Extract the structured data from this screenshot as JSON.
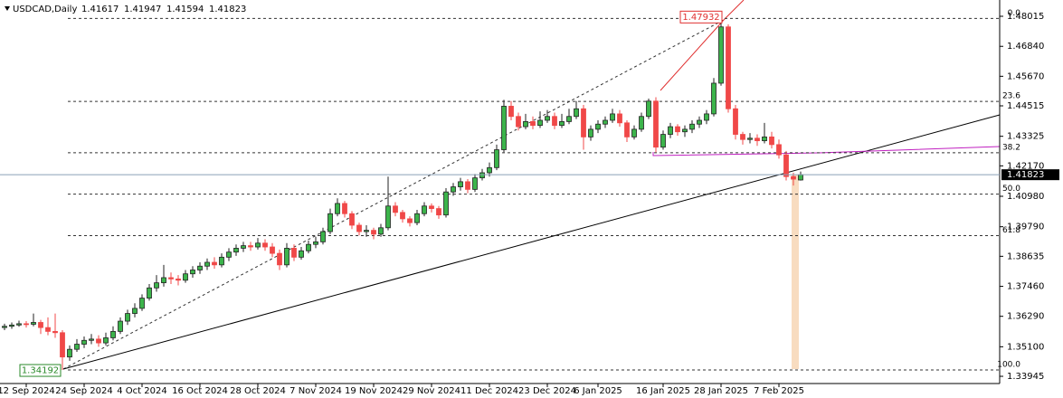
{
  "chart_data": {
    "type": "candlestick",
    "symbol": "USDCAD,Daily",
    "up_color": "#3cb44b",
    "down_color": "#f04848",
    "ylim": [
      1.33663,
      1.48651
    ],
    "yticks": [
      1.48015,
      {
        "value": 1.4684,
        "label": "1.46840"
      },
      {
        "value": 1.4567,
        "label": "1.45670"
      },
      1.44515,
      1.43325,
      {
        "value": 1.4217,
        "label": "1.42170"
      },
      {
        "value": 1.4098,
        "label": "1.40980"
      },
      {
        "value": 1.3979,
        "label": "1.39790"
      },
      1.38635,
      {
        "value": 1.3746,
        "label": "1.37460"
      },
      {
        "value": 1.3629,
        "label": "1.36290"
      },
      {
        "value": 1.351,
        "label": "1.35100"
      },
      1.33945
    ],
    "fibo_levels": [
      {
        "value": 1.47932,
        "label": "0.0"
      },
      {
        "value": 1.44689,
        "label": "23.6"
      },
      {
        "value": 1.42683,
        "label": "38.2"
      },
      {
        "value": 1.41062,
        "label": "50.0"
      },
      {
        "value": 1.39441,
        "label": "61.8"
      },
      {
        "value": 1.34192,
        "label": "100.0"
      }
    ],
    "categories": [
      null,
      null,
      null,
      "12 Sep 2024",
      null,
      null,
      null,
      null,
      null,
      null,
      null,
      "24 Sep 2024",
      null,
      null,
      null,
      null,
      null,
      null,
      null,
      "4 Oct 2024",
      null,
      null,
      null,
      null,
      null,
      null,
      null,
      "16 Oct 2024",
      null,
      null,
      null,
      null,
      null,
      null,
      null,
      "28 Oct 2024",
      null,
      null,
      null,
      null,
      null,
      null,
      null,
      "7 Nov 2024",
      null,
      null,
      null,
      null,
      null,
      null,
      null,
      "19 Nov 2024",
      null,
      null,
      null,
      null,
      null,
      null,
      null,
      "29 Nov 2024",
      null,
      null,
      null,
      null,
      null,
      null,
      null,
      "11 Dec 2024",
      null,
      null,
      null,
      null,
      null,
      null,
      null,
      "23 Dec 2024",
      null,
      null,
      null,
      null,
      null,
      null,
      "6 Jan 2025",
      null,
      null,
      null,
      null,
      null,
      null,
      null,
      null,
      "16 Jan 2025",
      null,
      null,
      null,
      null,
      null,
      null,
      null,
      "28 Jan 2025",
      null,
      null,
      null,
      null,
      null,
      null,
      null,
      "7 Feb 2025",
      null,
      null,
      null
    ],
    "ohlc": [
      [
        1.3585,
        1.36,
        1.3575,
        1.359
      ],
      [
        1.359,
        1.3605,
        1.358,
        1.3595
      ],
      [
        1.3595,
        1.3612,
        1.3588,
        1.36
      ],
      [
        1.36,
        1.361,
        1.3585,
        1.3598
      ],
      [
        1.3598,
        1.364,
        1.359,
        1.3605
      ],
      [
        1.3605,
        1.3615,
        1.356,
        1.3585
      ],
      [
        1.3585,
        1.3625,
        1.3555,
        1.357
      ],
      [
        1.357,
        1.364,
        1.3545,
        1.3565
      ],
      [
        1.3565,
        1.3575,
        1.34192,
        1.347
      ],
      [
        1.347,
        1.3515,
        1.3455,
        1.35
      ],
      [
        1.35,
        1.354,
        1.349,
        1.352
      ],
      [
        1.352,
        1.355,
        1.3505,
        1.3535
      ],
      [
        1.3535,
        1.356,
        1.352,
        1.354
      ],
      [
        1.354,
        1.3555,
        1.351,
        1.3525
      ],
      [
        1.3525,
        1.3565,
        1.3515,
        1.3545
      ],
      [
        1.3545,
        1.359,
        1.3535,
        1.357
      ],
      [
        1.357,
        1.3625,
        1.356,
        1.361
      ],
      [
        1.361,
        1.3655,
        1.3595,
        1.364
      ],
      [
        1.364,
        1.368,
        1.3625,
        1.366
      ],
      [
        1.366,
        1.3715,
        1.365,
        1.37
      ],
      [
        1.37,
        1.3755,
        1.369,
        1.374
      ],
      [
        1.374,
        1.379,
        1.3725,
        1.376
      ],
      [
        1.376,
        1.383,
        1.3745,
        1.378
      ],
      [
        1.378,
        1.38,
        1.3755,
        1.3775
      ],
      [
        1.3775,
        1.379,
        1.375,
        1.377
      ],
      [
        1.377,
        1.381,
        1.376,
        1.3795
      ],
      [
        1.3795,
        1.3825,
        1.378,
        1.381
      ],
      [
        1.381,
        1.384,
        1.3795,
        1.3825
      ],
      [
        1.3825,
        1.3855,
        1.381,
        1.384
      ],
      [
        1.384,
        1.386,
        1.3815,
        1.383
      ],
      [
        1.383,
        1.3875,
        1.382,
        1.386
      ],
      [
        1.386,
        1.3895,
        1.3845,
        1.388
      ],
      [
        1.388,
        1.391,
        1.3865,
        1.3895
      ],
      [
        1.3895,
        1.392,
        1.388,
        1.3905
      ],
      [
        1.3905,
        1.392,
        1.3885,
        1.39
      ],
      [
        1.39,
        1.3935,
        1.389,
        1.3915
      ],
      [
        1.3915,
        1.393,
        1.3885,
        1.39
      ],
      [
        1.39,
        1.3915,
        1.386,
        1.3875
      ],
      [
        1.3875,
        1.389,
        1.381,
        1.383
      ],
      [
        1.383,
        1.3915,
        1.382,
        1.3895
      ],
      [
        1.3895,
        1.391,
        1.3845,
        1.386
      ],
      [
        1.386,
        1.39,
        1.385,
        1.3885
      ],
      [
        1.3885,
        1.3925,
        1.3875,
        1.391
      ],
      [
        1.391,
        1.394,
        1.3895,
        1.392
      ],
      [
        1.392,
        1.3975,
        1.391,
        1.396
      ],
      [
        1.396,
        1.405,
        1.395,
        1.403
      ],
      [
        1.403,
        1.409,
        1.402,
        1.407
      ],
      [
        1.407,
        1.408,
        1.4015,
        1.403
      ],
      [
        1.403,
        1.404,
        1.397,
        1.3985
      ],
      [
        1.3985,
        1.3995,
        1.3945,
        1.396
      ],
      [
        1.396,
        1.3985,
        1.394,
        1.3965
      ],
      [
        1.3965,
        1.3975,
        1.393,
        1.395
      ],
      [
        1.395,
        1.399,
        1.394,
        1.3975
      ],
      [
        1.3975,
        1.4175,
        1.3965,
        1.406
      ],
      [
        1.406,
        1.4075,
        1.402,
        1.4035
      ],
      [
        1.4035,
        1.4045,
        1.3995,
        1.401
      ],
      [
        1.401,
        1.402,
        1.398,
        1.3995
      ],
      [
        1.3995,
        1.4045,
        1.3985,
        1.403
      ],
      [
        1.403,
        1.4075,
        1.402,
        1.406
      ],
      [
        1.406,
        1.407,
        1.4035,
        1.405
      ],
      [
        1.405,
        1.406,
        1.401,
        1.4025
      ],
      [
        1.4025,
        1.413,
        1.4015,
        1.4115
      ],
      [
        1.4115,
        1.415,
        1.41,
        1.4135
      ],
      [
        1.4135,
        1.417,
        1.412,
        1.4155
      ],
      [
        1.4155,
        1.4165,
        1.411,
        1.4125
      ],
      [
        1.4125,
        1.4185,
        1.4115,
        1.417
      ],
      [
        1.417,
        1.4205,
        1.416,
        1.419
      ],
      [
        1.419,
        1.423,
        1.4175,
        1.421
      ],
      [
        1.421,
        1.43,
        1.42,
        1.428
      ],
      [
        1.428,
        1.4475,
        1.427,
        1.445
      ],
      [
        1.445,
        1.447,
        1.4395,
        1.441
      ],
      [
        1.441,
        1.4425,
        1.4355,
        1.437
      ],
      [
        1.437,
        1.442,
        1.436,
        1.439
      ],
      [
        1.439,
        1.441,
        1.436,
        1.4375
      ],
      [
        1.4375,
        1.443,
        1.4365,
        1.4395
      ],
      [
        1.4395,
        1.4435,
        1.4385,
        1.441
      ],
      [
        1.441,
        1.4425,
        1.436,
        1.4375
      ],
      [
        1.4375,
        1.442,
        1.4365,
        1.439
      ],
      [
        1.439,
        1.444,
        1.438,
        1.441
      ],
      [
        1.441,
        1.447,
        1.44,
        1.444
      ],
      [
        1.444,
        1.4455,
        1.428,
        1.433
      ],
      [
        1.433,
        1.4375,
        1.4315,
        1.436
      ],
      [
        1.436,
        1.4395,
        1.4345,
        1.438
      ],
      [
        1.438,
        1.441,
        1.4365,
        1.4395
      ],
      [
        1.4395,
        1.444,
        1.4385,
        1.442
      ],
      [
        1.442,
        1.4435,
        1.437,
        1.4385
      ],
      [
        1.4385,
        1.4395,
        1.431,
        1.433
      ],
      [
        1.433,
        1.4375,
        1.432,
        1.436
      ],
      [
        1.436,
        1.4425,
        1.435,
        1.441
      ],
      [
        1.441,
        1.448,
        1.44,
        1.447
      ],
      [
        1.447,
        1.4485,
        1.427,
        1.429
      ],
      [
        1.429,
        1.4355,
        1.428,
        1.434
      ],
      [
        1.434,
        1.4385,
        1.4325,
        1.437
      ],
      [
        1.437,
        1.438,
        1.4335,
        1.435
      ],
      [
        1.435,
        1.4375,
        1.433,
        1.436
      ],
      [
        1.436,
        1.4395,
        1.4345,
        1.438
      ],
      [
        1.438,
        1.441,
        1.4365,
        1.4395
      ],
      [
        1.4395,
        1.4435,
        1.438,
        1.442
      ],
      [
        1.442,
        1.456,
        1.441,
        1.454
      ],
      [
        1.454,
        1.47932,
        1.453,
        1.476
      ],
      [
        1.476,
        1.477,
        1.4425,
        1.444
      ],
      [
        1.444,
        1.4455,
        1.432,
        1.434
      ],
      [
        1.434,
        1.435,
        1.43,
        1.432
      ],
      [
        1.432,
        1.4345,
        1.4305,
        1.4325
      ],
      [
        1.4325,
        1.434,
        1.4295,
        1.4315
      ],
      [
        1.4315,
        1.4385,
        1.4305,
        1.433
      ],
      [
        1.433,
        1.435,
        1.4285,
        1.43
      ],
      [
        1.43,
        1.432,
        1.4245,
        1.426
      ],
      [
        1.426,
        1.4275,
        1.416,
        1.4175
      ],
      [
        1.4175,
        1.419,
        1.414,
        1.4165
      ],
      [
        1.41617,
        1.41947,
        1.41594,
        1.41823
      ]
    ]
  }
}
